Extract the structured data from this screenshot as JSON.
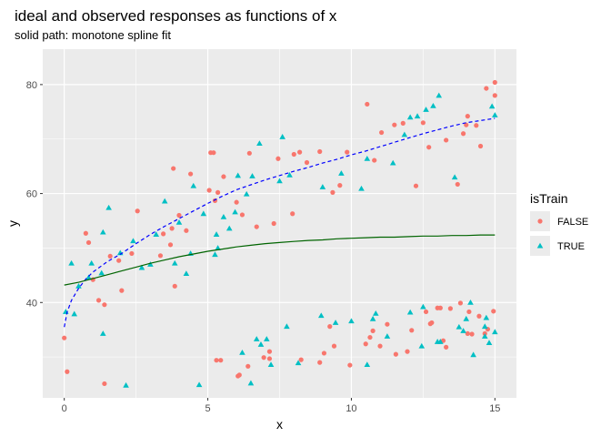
{
  "chart_data": {
    "type": "scatter",
    "title": "ideal and observed responses as functions of x",
    "subtitle": "solid path: monotone spline fit",
    "xlabel": "x",
    "ylabel": "y",
    "xlim": [
      -0.75,
      15.75
    ],
    "ylim": [
      22.5,
      86.5
    ],
    "x_ticks": [
      0,
      5,
      10,
      15
    ],
    "y_ticks": [
      40,
      60,
      80
    ],
    "grid": true,
    "legend": {
      "title": "isTrain",
      "position": "right"
    },
    "colors": {
      "FALSE": "#F8766D",
      "TRUE": "#00BFC4",
      "ideal": "#0000FF",
      "fit": "#006400",
      "panel": "#EBEBEB",
      "grid": "#FFFFFF"
    },
    "series": [
      {
        "name": "FALSE",
        "marker": "circle",
        "points": [
          [
            0.0,
            33.5
          ],
          [
            0.1,
            27.3
          ],
          [
            0.75,
            52.7
          ],
          [
            0.85,
            51.0
          ],
          [
            1.0,
            44.2
          ],
          [
            1.2,
            40.4
          ],
          [
            1.4,
            39.6
          ],
          [
            1.4,
            25.1
          ],
          [
            1.6,
            48.5
          ],
          [
            1.9,
            47.7
          ],
          [
            2.0,
            42.2
          ],
          [
            2.35,
            49.0
          ],
          [
            2.55,
            56.8
          ],
          [
            3.35,
            48.6
          ],
          [
            3.45,
            52.6
          ],
          [
            3.7,
            50.6
          ],
          [
            3.75,
            53.6
          ],
          [
            3.8,
            64.6
          ],
          [
            3.85,
            43.0
          ],
          [
            4.0,
            56.0
          ],
          [
            4.25,
            53.2
          ],
          [
            4.4,
            63.6
          ],
          [
            5.05,
            60.6
          ],
          [
            5.1,
            67.5
          ],
          [
            5.2,
            67.5
          ],
          [
            5.25,
            58.7
          ],
          [
            5.3,
            29.4
          ],
          [
            5.35,
            60.2
          ],
          [
            5.45,
            29.4
          ],
          [
            5.55,
            63.1
          ],
          [
            6.0,
            58.4
          ],
          [
            6.05,
            26.5
          ],
          [
            6.1,
            26.7
          ],
          [
            6.2,
            56.1
          ],
          [
            6.4,
            28.3
          ],
          [
            6.45,
            67.4
          ],
          [
            6.7,
            53.9
          ],
          [
            6.95,
            29.9
          ],
          [
            7.15,
            31.0
          ],
          [
            7.15,
            29.7
          ],
          [
            7.3,
            54.5
          ],
          [
            7.45,
            66.4
          ],
          [
            7.95,
            56.3
          ],
          [
            8.0,
            67.2
          ],
          [
            8.2,
            67.6
          ],
          [
            8.25,
            29.5
          ],
          [
            8.45,
            65.7
          ],
          [
            8.9,
            67.7
          ],
          [
            8.9,
            29.0
          ],
          [
            9.05,
            30.7
          ],
          [
            9.25,
            35.6
          ],
          [
            9.35,
            60.2
          ],
          [
            9.4,
            32.0
          ],
          [
            9.6,
            61.5
          ],
          [
            9.85,
            67.6
          ],
          [
            9.95,
            28.5
          ],
          [
            10.5,
            32.4
          ],
          [
            10.55,
            76.4
          ],
          [
            10.65,
            33.6
          ],
          [
            10.75,
            34.8
          ],
          [
            10.8,
            66.1
          ],
          [
            11.0,
            32.0
          ],
          [
            11.05,
            71.2
          ],
          [
            11.25,
            36.0
          ],
          [
            11.5,
            72.6
          ],
          [
            11.55,
            30.5
          ],
          [
            11.8,
            72.9
          ],
          [
            11.95,
            31.0
          ],
          [
            12.1,
            34.9
          ],
          [
            12.25,
            61.4
          ],
          [
            12.6,
            38.3
          ],
          [
            12.7,
            68.5
          ],
          [
            12.75,
            36.1
          ],
          [
            12.8,
            36.3
          ],
          [
            13.0,
            39.0
          ],
          [
            13.1,
            39.0
          ],
          [
            13.2,
            33.0
          ],
          [
            13.3,
            31.8
          ],
          [
            13.3,
            69.8
          ],
          [
            13.45,
            38.9
          ],
          [
            13.7,
            61.7
          ],
          [
            13.8,
            39.9
          ],
          [
            13.9,
            71.0
          ],
          [
            14.0,
            72.6
          ],
          [
            14.05,
            74.2
          ],
          [
            14.05,
            34.3
          ],
          [
            14.1,
            38.3
          ],
          [
            14.2,
            34.2
          ],
          [
            14.35,
            72.5
          ],
          [
            14.45,
            37.5
          ],
          [
            14.65,
            34.3
          ],
          [
            14.7,
            79.3
          ],
          [
            14.75,
            35.1
          ],
          [
            14.95,
            38.4
          ],
          [
            15.0,
            80.4
          ],
          [
            15.0,
            78.0
          ],
          [
            14.5,
            68.7
          ],
          [
            12.5,
            73.0
          ]
        ]
      },
      {
        "name": "TRUE",
        "marker": "triangle",
        "points": [
          [
            0.05,
            38.3
          ],
          [
            0.25,
            47.2
          ],
          [
            0.35,
            37.9
          ],
          [
            0.5,
            43.0
          ],
          [
            0.85,
            44.6
          ],
          [
            0.95,
            47.2
          ],
          [
            1.3,
            45.4
          ],
          [
            1.35,
            34.3
          ],
          [
            1.35,
            52.9
          ],
          [
            1.55,
            57.4
          ],
          [
            1.95,
            49.1
          ],
          [
            2.15,
            24.8
          ],
          [
            2.4,
            51.3
          ],
          [
            2.7,
            46.4
          ],
          [
            3.0,
            47.0
          ],
          [
            3.2,
            52.5
          ],
          [
            3.5,
            58.6
          ],
          [
            3.85,
            47.2
          ],
          [
            4.0,
            54.7
          ],
          [
            4.25,
            45.3
          ],
          [
            4.4,
            49.0
          ],
          [
            4.5,
            61.4
          ],
          [
            4.7,
            24.9
          ],
          [
            4.85,
            56.3
          ],
          [
            5.25,
            48.8
          ],
          [
            5.3,
            52.5
          ],
          [
            5.35,
            50.0
          ],
          [
            5.55,
            55.7
          ],
          [
            5.75,
            53.6
          ],
          [
            5.95,
            56.6
          ],
          [
            6.05,
            63.3
          ],
          [
            6.2,
            30.8
          ],
          [
            6.35,
            59.9
          ],
          [
            6.5,
            25.2
          ],
          [
            6.55,
            63.2
          ],
          [
            6.7,
            33.3
          ],
          [
            6.8,
            69.2
          ],
          [
            6.85,
            32.3
          ],
          [
            7.05,
            33.3
          ],
          [
            7.2,
            28.6
          ],
          [
            7.5,
            62.3
          ],
          [
            7.6,
            70.4
          ],
          [
            7.75,
            35.6
          ],
          [
            7.85,
            63.4
          ],
          [
            8.15,
            28.9
          ],
          [
            9.0,
            61.2
          ],
          [
            9.45,
            36.3
          ],
          [
            9.65,
            63.7
          ],
          [
            10.35,
            60.9
          ],
          [
            10.55,
            66.4
          ],
          [
            10.55,
            28.6
          ],
          [
            10.75,
            37.0
          ],
          [
            11.25,
            33.8
          ],
          [
            11.45,
            65.6
          ],
          [
            11.85,
            70.8
          ],
          [
            12.05,
            74.0
          ],
          [
            12.3,
            74.2
          ],
          [
            12.5,
            39.2
          ],
          [
            12.6,
            75.4
          ],
          [
            12.85,
            76.1
          ],
          [
            13.05,
            78.0
          ],
          [
            13.1,
            32.8
          ],
          [
            13.6,
            63.0
          ],
          [
            13.75,
            35.5
          ],
          [
            13.9,
            34.8
          ],
          [
            14.0,
            37.0
          ],
          [
            14.15,
            40.0
          ],
          [
            14.25,
            30.4
          ],
          [
            14.65,
            33.8
          ],
          [
            14.7,
            37.2
          ],
          [
            14.8,
            32.6
          ],
          [
            14.9,
            76.0
          ],
          [
            15.0,
            74.4
          ],
          [
            15.0,
            34.6
          ],
          [
            10.0,
            36.6
          ],
          [
            8.95,
            37.6
          ],
          [
            10.85,
            38.0
          ],
          [
            12.05,
            38.2
          ],
          [
            13.0,
            32.8
          ],
          [
            12.45,
            32.0
          ],
          [
            14.65,
            35.6
          ]
        ]
      }
    ],
    "lines": [
      {
        "name": "ideal",
        "style": "dashed",
        "points": [
          [
            0.0,
            35.5
          ],
          [
            0.1,
            38.2
          ],
          [
            0.25,
            40.4
          ],
          [
            0.5,
            42.6
          ],
          [
            0.75,
            44.3
          ],
          [
            1.0,
            45.6
          ],
          [
            1.5,
            47.5
          ],
          [
            2.0,
            49.0
          ],
          [
            2.5,
            50.8
          ],
          [
            3.0,
            52.5
          ],
          [
            3.5,
            54.0
          ],
          [
            4.0,
            55.4
          ],
          [
            4.5,
            56.8
          ],
          [
            5.0,
            58.2
          ],
          [
            5.5,
            59.5
          ],
          [
            6.0,
            60.7
          ],
          [
            6.5,
            61.6
          ],
          [
            7.0,
            62.5
          ],
          [
            7.5,
            63.3
          ],
          [
            8.0,
            64.1
          ],
          [
            8.5,
            64.8
          ],
          [
            9.0,
            65.6
          ],
          [
            9.5,
            66.3
          ],
          [
            10.0,
            67.1
          ],
          [
            10.5,
            67.8
          ],
          [
            11.0,
            68.6
          ],
          [
            11.5,
            69.4
          ],
          [
            12.0,
            70.2
          ],
          [
            12.5,
            71.0
          ],
          [
            13.0,
            71.7
          ],
          [
            13.5,
            72.4
          ],
          [
            14.0,
            73.0
          ],
          [
            14.5,
            73.4
          ],
          [
            15.0,
            73.8
          ]
        ]
      },
      {
        "name": "fit",
        "style": "solid",
        "points": [
          [
            0.0,
            43.2
          ],
          [
            0.5,
            43.7
          ],
          [
            1.0,
            44.4
          ],
          [
            1.5,
            45.1
          ],
          [
            2.0,
            45.8
          ],
          [
            2.5,
            46.5
          ],
          [
            3.0,
            47.2
          ],
          [
            3.5,
            47.8
          ],
          [
            4.0,
            48.4
          ],
          [
            4.5,
            48.9
          ],
          [
            5.0,
            49.4
          ],
          [
            5.5,
            49.8
          ],
          [
            6.0,
            50.2
          ],
          [
            6.5,
            50.5
          ],
          [
            7.0,
            50.8
          ],
          [
            7.5,
            51.0
          ],
          [
            8.0,
            51.2
          ],
          [
            8.5,
            51.4
          ],
          [
            9.0,
            51.5
          ],
          [
            9.5,
            51.7
          ],
          [
            10.0,
            51.8
          ],
          [
            10.5,
            51.9
          ],
          [
            11.0,
            52.0
          ],
          [
            11.5,
            52.0
          ],
          [
            12.0,
            52.1
          ],
          [
            12.5,
            52.2
          ],
          [
            13.0,
            52.2
          ],
          [
            13.5,
            52.3
          ],
          [
            14.0,
            52.3
          ],
          [
            14.5,
            52.4
          ],
          [
            15.0,
            52.4
          ]
        ]
      }
    ]
  }
}
